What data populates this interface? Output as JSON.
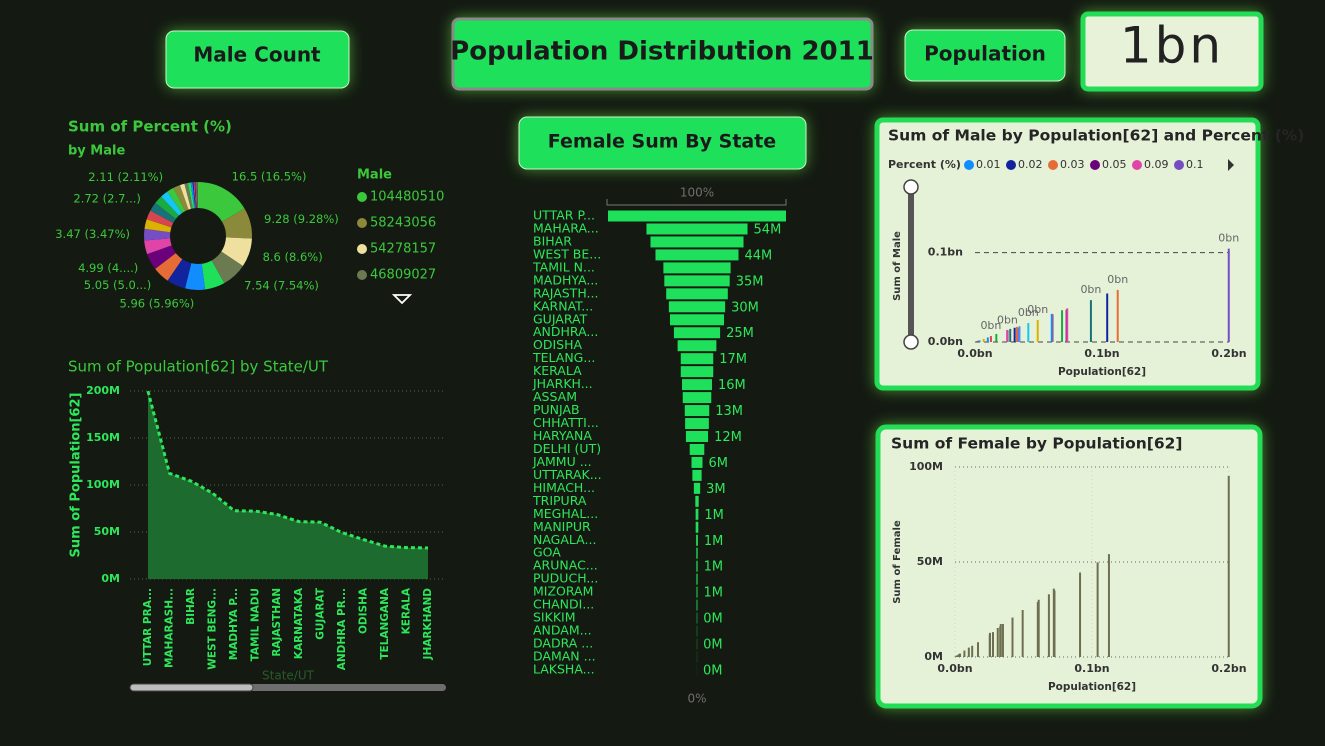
{
  "header": {
    "title": "Population Distribution 2011",
    "male_button": "Male Count",
    "population_button": "Population",
    "card_value": "1bn"
  },
  "chart_data": [
    {
      "type": "pie",
      "title": "Sum of Percent (%)",
      "subtitle": "by Male",
      "legend_title": "Male",
      "categories": [
        "104480510",
        "58243056",
        "54278157",
        "46809027",
        null,
        null,
        null,
        null,
        null,
        null,
        null,
        null,
        null,
        null,
        null,
        null,
        null,
        null,
        null,
        null,
        null,
        null,
        null,
        null,
        null,
        null,
        null,
        null,
        null,
        null,
        null,
        null,
        null,
        null,
        null,
        null
      ],
      "values": [
        16.5,
        9.28,
        8.6,
        7.54,
        5.99,
        5.96,
        5.67,
        5.05,
        4.99,
        4.1,
        3.47,
        2.89,
        2.76,
        2.72,
        2.58,
        2.29,
        2.11,
        2.09,
        1.39,
        1.04,
        0.84,
        0.57,
        0.3,
        0.25,
        0.24,
        0.16,
        0.12,
        0.11,
        0.1,
        0.09,
        0.09,
        0.05,
        0.03,
        0.03,
        0.02,
        0.01
      ],
      "value_labels": [
        "16.5 (16.5%)",
        "9.28 (9.28%)",
        "8.6 (8.6%)",
        "7.54 (7.54%)",
        null,
        "5.96 (5.96%)",
        null,
        "5.05 (5.0...)",
        "4.99 (4....)",
        null,
        "3.47 (3.47%)",
        null,
        null,
        "2.72 (2.7...)",
        null,
        null,
        "2.11 (2.11%)",
        null,
        null,
        null,
        null,
        null,
        null,
        null,
        null,
        null,
        null,
        null,
        null,
        null,
        null,
        null,
        null,
        null,
        null,
        null
      ],
      "colors": [
        "#3cc83c",
        "#8a8a3a",
        "#f0e0a0",
        "#6b7a50",
        "#1ee05a",
        "#118dff",
        "#12239e",
        "#e66c37",
        "#6b007b",
        "#e044a7",
        "#744ec2",
        "#d9b300",
        "#d64550",
        "#197278",
        "#1aab40",
        "#15c6f4"
      ]
    },
    {
      "type": "area",
      "title": "Sum of Population[62] by State/UT",
      "y_label": "Sum of Population[62]",
      "x_label": "State/UT",
      "categories": [
        "UTTAR PRA...",
        "MAHARASH...",
        "BIHAR",
        "WEST BENG...",
        "MADHYA P...",
        "TAMIL NADU",
        "RAJASTHAN",
        "KARNATAKA",
        "GUJARAT",
        "ANDHRA PR...",
        "ODISHA",
        "TELANGANA",
        "KERALA",
        "JHARKHAND"
      ],
      "values": [
        199812341,
        112374333,
        104099452,
        91276115,
        72626809,
        72147030,
        68548437,
        61095297,
        60439692,
        49386799,
        41974218,
        35003674,
        33406061,
        32988134
      ],
      "color": "#1e6b30",
      "line_color": "#2ee65a",
      "ylim": [
        0,
        200000000
      ],
      "yticks": [
        {
          "value": 0,
          "label": "0M"
        },
        {
          "value": 50000000,
          "label": "50M"
        },
        {
          "value": 100000000,
          "label": "100M"
        },
        {
          "value": 150000000,
          "label": "150M"
        },
        {
          "value": 200000000,
          "label": "200M"
        }
      ],
      "grid": "dotted"
    },
    {
      "type": "funnel",
      "title": "Female Sum By State",
      "top_label": "100%",
      "bottom_label": "0%",
      "color": "#1ee05a",
      "categories": [
        "UTTAR P...",
        "MAHARA...",
        "BIHAR",
        "WEST BE...",
        "TAMIL N...",
        "MADHYA...",
        "RAJASTH...",
        "KARNAT...",
        "GUJARAT",
        "ANDHRA...",
        "ODISHA",
        "TELANG...",
        "KERALA",
        "JHARKH...",
        "ASSAM",
        "PUNJAB",
        "CHHATTI...",
        "HARYANA",
        "DELHI (UT)",
        "JAMMU ...",
        "UTTARAK...",
        "HIMACH...",
        "TRIPURA",
        "MEGHAL...",
        "MANIPUR",
        "NAGALA...",
        "GOA",
        "ARUNAC...",
        "PUDUCH...",
        "MIZORAM",
        "CHANDI...",
        "SIKKIM",
        "ANDAM...",
        "DADRA ...",
        "DAMAN ...",
        "LAKSHA..."
      ],
      "values": [
        95331831,
        54131277,
        49821295,
        44467088,
        36009055,
        35014503,
        32997440,
        30128640,
        28948432,
        24738068,
        20762082,
        17392041,
        17378649,
        16057819,
        15266133,
        13103873,
        12712303,
        11856728,
        7800615,
        5900640,
        4948519,
        3382729,
        1799541,
        1475057,
        1417208,
        953853,
        719405,
        669815,
        635442,
        541867,
        474787,
        287507,
        177710,
        149949,
        92946,
        31350
      ],
      "value_labels": [
        null,
        "54M",
        null,
        "44M",
        null,
        "35M",
        null,
        "30M",
        null,
        "25M",
        null,
        "17M",
        null,
        "16M",
        null,
        "13M",
        null,
        "12M",
        null,
        "6M",
        null,
        "3M",
        null,
        "1M",
        null,
        "1M",
        null,
        "1M",
        null,
        "1M",
        null,
        "0M",
        null,
        "0M",
        null,
        "0M"
      ]
    },
    {
      "type": "spike",
      "title": "Sum of Male by Population[62] and Percent (%)",
      "y_label": "Sum of Male",
      "x_label": "Population[62]",
      "legend": {
        "title": "Percent (%)",
        "items": [
          {
            "name": "0.01",
            "color": "#118dff"
          },
          {
            "name": "0.02",
            "color": "#12239e"
          },
          {
            "name": "0.03",
            "color": "#e66c37"
          },
          {
            "name": "0.05",
            "color": "#6b007b"
          },
          {
            "name": "0.09",
            "color": "#e044a7"
          },
          {
            "name": "0.1",
            "color": "#744ec2"
          }
        ]
      },
      "x": [
        199812341,
        112374333,
        104099452,
        91276115,
        72147030,
        72626809,
        68548437,
        61095297,
        60439692,
        49386799,
        41974218,
        35003674,
        33406061,
        32988134,
        31205576,
        27743338,
        25545198,
        25351462,
        16787941,
        12541302,
        10086292,
        6864602,
        3673917,
        2966889,
        2855794,
        1978502,
        1458545,
        1383727,
        1247953,
        1097206,
        1055450,
        610577,
        380581,
        343709,
        243247,
        64473
      ],
      "values": [
        104480510,
        58243056,
        54278157,
        46809027,
        36137975,
        37612306,
        35550997,
        30966657,
        31491260,
        24648731,
        21212136,
        17611633,
        16027412,
        16930315,
        15939443,
        14639465,
        12832895,
        13494734,
        8987326,
        6640662,
        5137773,
        3481873,
        1874376,
        1491832,
        1438586,
        1024649,
        739140,
        713912,
        612511,
        555339,
        580663,
        323070,
        202871,
        193760,
        150301,
        33123
      ],
      "value_labels": [
        "0bn",
        "0bn",
        null,
        "0bn",
        null,
        null,
        null,
        null,
        null,
        "0bn",
        "0bn",
        null,
        null,
        null,
        null,
        null,
        "0bn",
        null,
        null,
        "0bn",
        null,
        null,
        null,
        null,
        null,
        null,
        null,
        null,
        null,
        null,
        null,
        null,
        null,
        null,
        null,
        null
      ],
      "colors": [
        "#744ec2",
        "#e66c37",
        "#12239e",
        "#197278",
        "#6b007b",
        "#e044a7",
        "#1aab40",
        "#d64550",
        "#118dff",
        "#d9b300",
        "#15c6f4",
        "#4092ff"
      ],
      "xlim": [
        0,
        200000000
      ],
      "xticks": [
        {
          "value": 0,
          "label": "0.0bn"
        },
        {
          "value": 100000000,
          "label": "0.1bn"
        },
        {
          "value": 200000000,
          "label": "0.2bn"
        }
      ],
      "ylim": [
        0,
        170000000
      ],
      "yticks": [
        {
          "value": 0,
          "label": "0.0bn"
        },
        {
          "value": 100000000,
          "label": "0.1bn"
        }
      ],
      "grid": "dashed"
    },
    {
      "type": "spike",
      "title": "Sum of Female by Population[62]",
      "y_label": "Sum of Female",
      "x_label": "Population[62]",
      "color": "#6e6e50",
      "x": [
        199812341,
        112374333,
        104099452,
        91276115,
        72147030,
        72626809,
        68548437,
        61095297,
        60439692,
        49386799,
        41974218,
        35003674,
        33406061,
        32988134,
        31205576,
        27743338,
        25545198,
        25351462,
        16787941,
        12541302,
        10086292,
        6864602,
        3673917,
        2966889,
        2855794,
        1978502,
        1458545,
        1383727,
        1247953,
        1097206,
        1055450,
        610577,
        380581,
        343709,
        243247,
        64473
      ],
      "values": [
        95331831,
        54131277,
        49821295,
        44467088,
        36009055,
        35014503,
        32997440,
        30128640,
        28948432,
        24738068,
        20762082,
        17392041,
        17378649,
        16057819,
        15266133,
        13103873,
        12712303,
        11856728,
        7800615,
        5900640,
        4948519,
        3382729,
        1799541,
        1475057,
        1417208,
        953853,
        719405,
        669815,
        635442,
        541867,
        474787,
        287507,
        177710,
        149949,
        92946,
        31350
      ],
      "xlim": [
        0,
        200000000
      ],
      "xticks": [
        {
          "value": 0,
          "label": "0.0bn"
        },
        {
          "value": 100000000,
          "label": "0.1bn"
        },
        {
          "value": 200000000,
          "label": "0.2bn"
        }
      ],
      "ylim": [
        0,
        100000000
      ],
      "yticks": [
        {
          "value": 0,
          "label": "0M"
        },
        {
          "value": 50000000,
          "label": "50M"
        },
        {
          "value": 100000000,
          "label": "100M"
        }
      ],
      "grid": "dotted"
    }
  ]
}
